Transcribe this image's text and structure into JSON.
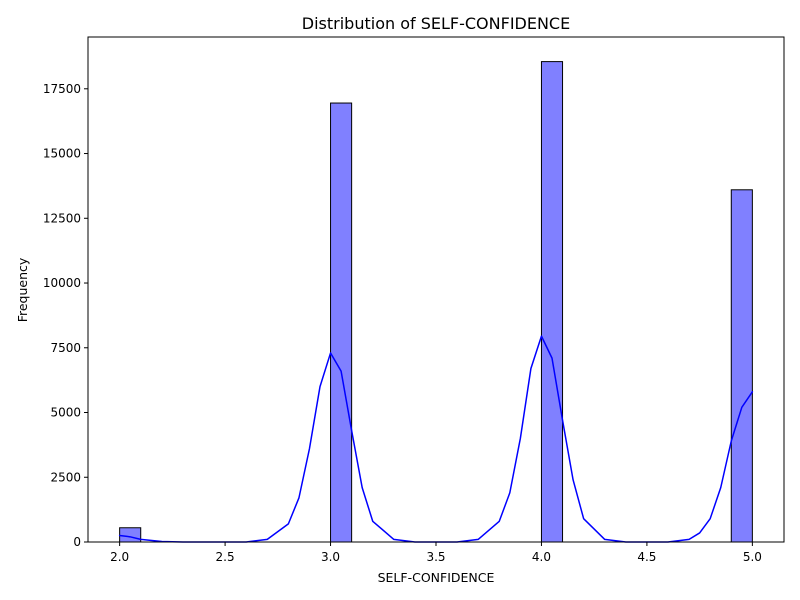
{
  "chart_data": {
    "type": "bar",
    "title": "Distribution of SELF-CONFIDENCE",
    "xlabel": "SELF-CONFIDENCE",
    "ylabel": "Frequency",
    "xlim": [
      1.85,
      5.15
    ],
    "ylim": [
      0,
      19500
    ],
    "x_ticks": [
      2.0,
      2.5,
      3.0,
      3.5,
      4.0,
      4.5,
      5.0
    ],
    "x_tick_labels": [
      "2.0",
      "2.5",
      "3.0",
      "3.5",
      "4.0",
      "4.5",
      "5.0"
    ],
    "y_ticks": [
      0,
      2500,
      5000,
      7500,
      10000,
      12500,
      15000,
      17500
    ],
    "y_tick_labels": [
      "0",
      "2500",
      "5000",
      "7500",
      "10000",
      "12500",
      "15000",
      "17500"
    ],
    "grid": false,
    "bin_width": 0.1,
    "bars": [
      {
        "x_start": 2.0,
        "x_end": 2.1,
        "value": 550
      },
      {
        "x_start": 3.0,
        "x_end": 3.1,
        "value": 16950
      },
      {
        "x_start": 4.0,
        "x_end": 4.1,
        "value": 18550
      },
      {
        "x_start": 4.9,
        "x_end": 5.0,
        "value": 13600
      }
    ],
    "kde": {
      "type": "line",
      "x": [
        2.0,
        2.05,
        2.1,
        2.2,
        2.3,
        2.4,
        2.5,
        2.6,
        2.7,
        2.8,
        2.85,
        2.9,
        2.95,
        3.0,
        3.05,
        3.1,
        3.15,
        3.2,
        3.3,
        3.4,
        3.5,
        3.6,
        3.7,
        3.8,
        3.85,
        3.9,
        3.95,
        4.0,
        4.05,
        4.1,
        4.15,
        4.2,
        4.3,
        4.4,
        4.5,
        4.6,
        4.7,
        4.75,
        4.8,
        4.85,
        4.9,
        4.95,
        5.0
      ],
      "y": [
        250,
        200,
        100,
        20,
        0,
        0,
        0,
        0,
        100,
        700,
        1700,
        3600,
        6000,
        7300,
        6600,
        4300,
        2100,
        800,
        100,
        0,
        0,
        0,
        100,
        800,
        1900,
        4000,
        6700,
        7950,
        7100,
        4700,
        2400,
        900,
        100,
        0,
        0,
        0,
        100,
        350,
        900,
        2100,
        3900,
        5200,
        5800
      ]
    },
    "colors": {
      "bar_fill": "#8080ff",
      "bar_edge": "#000000",
      "kde_line": "#0000ff",
      "axes": "#000000",
      "background": "#ffffff"
    }
  }
}
